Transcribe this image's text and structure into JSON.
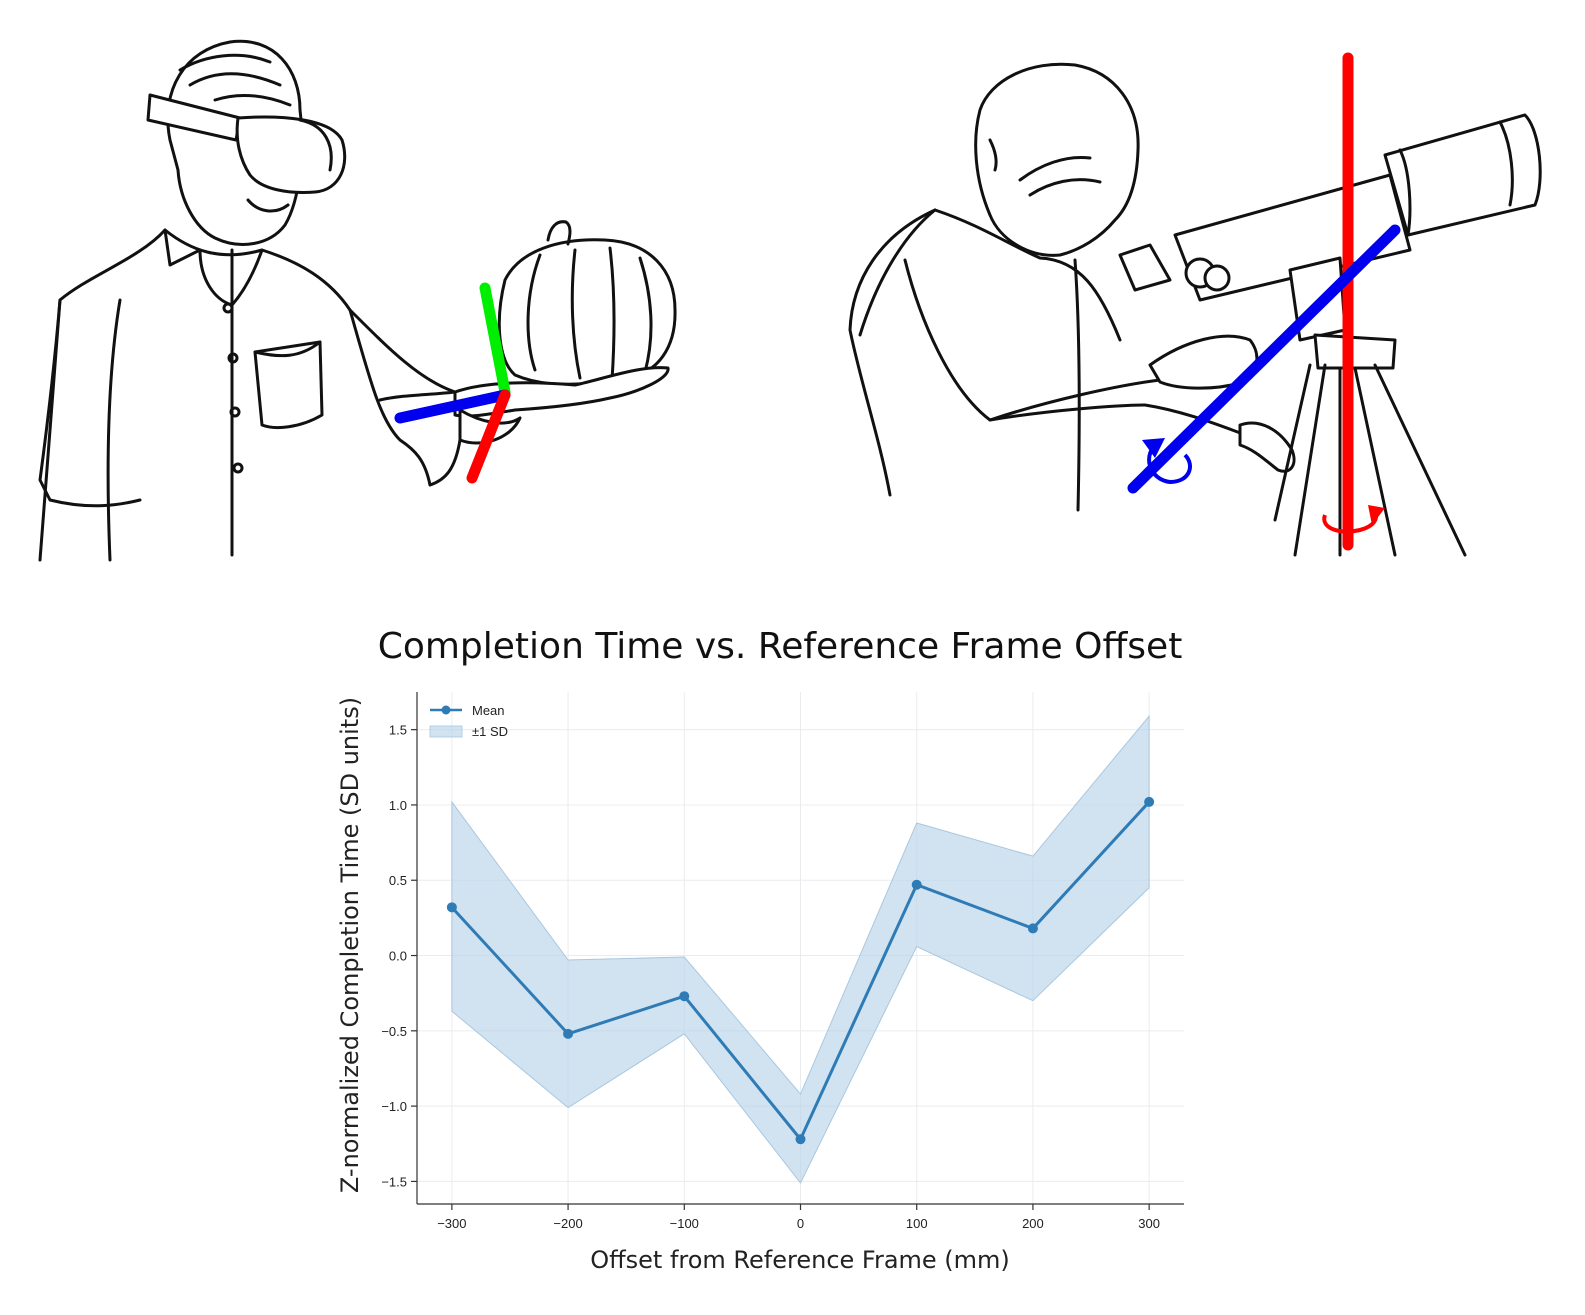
{
  "chart_data": {
    "type": "line",
    "title": "Completion Time vs. Reference Frame Offset",
    "xlabel": "Offset from Reference Frame (mm)",
    "ylabel": "Z-normalized Completion Time (SD units)",
    "x": [
      -300,
      -200,
      -100,
      0,
      100,
      200,
      300
    ],
    "xticks": [
      -300,
      -200,
      -100,
      0,
      100,
      200,
      300
    ],
    "xtick_labels": [
      "−300",
      "−200",
      "−100",
      "0",
      "100",
      "200",
      "300"
    ],
    "yticks": [
      -1.5,
      -1.0,
      -0.5,
      0.0,
      0.5,
      1.0,
      1.5
    ],
    "ytick_labels": [
      "−1.5",
      "−1.0",
      "−0.5",
      "0.0",
      "0.5",
      "1.0",
      "1.5"
    ],
    "xlim": [
      -330,
      330
    ],
    "ylim": [
      -1.65,
      1.75
    ],
    "grid": true,
    "legend_position": "top-left",
    "series": [
      {
        "name": "Mean",
        "kind": "line",
        "color": "#2e7bb6",
        "values": [
          0.32,
          -0.52,
          -0.27,
          -1.22,
          0.47,
          0.18,
          1.02
        ]
      },
      {
        "name": "±1 SD",
        "kind": "band",
        "color": "#b9d4e9",
        "lower": [
          -0.37,
          -1.01,
          -0.52,
          -1.51,
          0.06,
          -0.3,
          0.45
        ],
        "upper": [
          1.02,
          -0.03,
          -0.01,
          -0.92,
          0.88,
          0.66,
          1.59
        ]
      }
    ]
  },
  "illustrations": [
    {
      "subject": "person-with-vr-headset-holding-pumpkin",
      "axis_colors": [
        "#00ee00",
        "#0000ee",
        "#ff0000"
      ]
    },
    {
      "subject": "person-looking-through-telescope-on-tripod",
      "axis_colors": [
        "#ff0000",
        "#0000ee"
      ]
    }
  ]
}
